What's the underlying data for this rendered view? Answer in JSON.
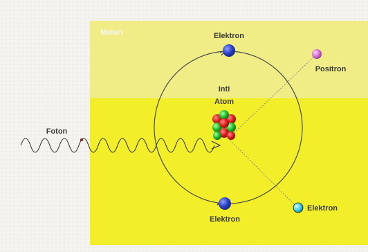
{
  "labels": {
    "materi": "Materi",
    "elektron_top": "Elektron",
    "positron": "Positron",
    "inti": "Inti",
    "atom": "Atom",
    "foton": "Foton",
    "elektron_bottom": "Elektron",
    "elektron_right": "Elektron"
  },
  "colors": {
    "paper_bg": "#f6f4f0",
    "materi_light": "#f1ed86",
    "materi_dark": "#f2ee2a",
    "orbit": "#4a4a4a",
    "trajectory": "#7a7a7a",
    "wave": "#333333",
    "electron": "#2c43c8",
    "positron": "#d873d8",
    "ejected_electron": "#46d2ea",
    "proton": "#e11f1f",
    "neutron": "#1fbf2a"
  }
}
